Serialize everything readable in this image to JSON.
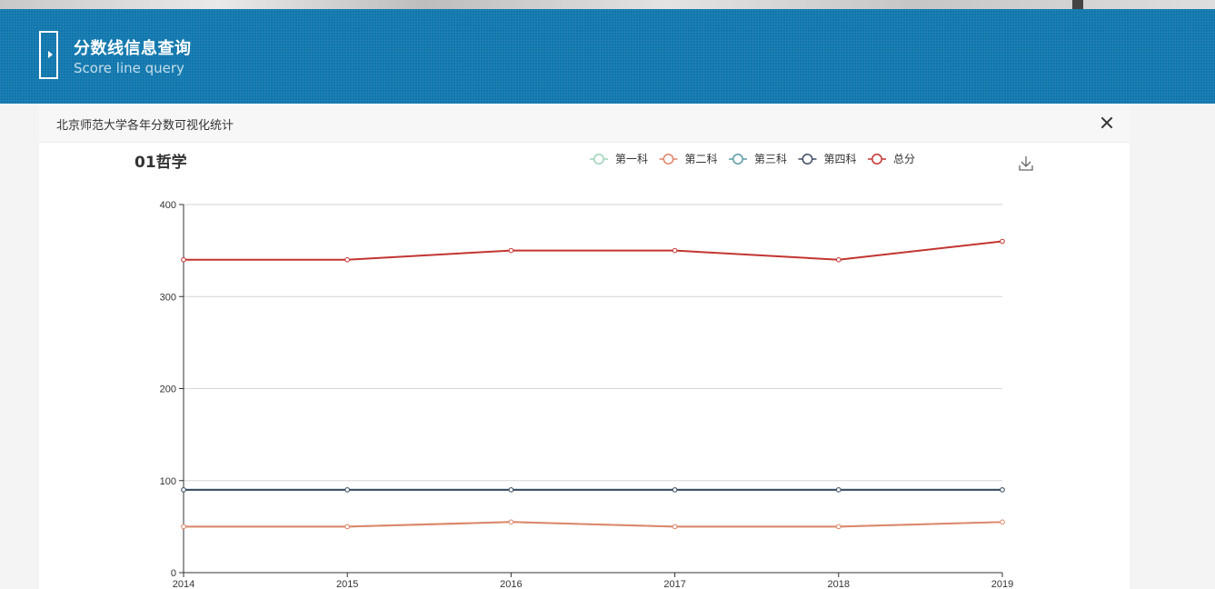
{
  "banner": {
    "title": "分数线信息查询",
    "subtitle": "Score line query",
    "color": "#0f76ad",
    "icon": "play-icon"
  },
  "panel": {
    "title": "北京师范大学各年分数可视化统计",
    "close_icon": "close-icon"
  },
  "toolbar": {
    "download_icon": "download-icon"
  },
  "chart_data": {
    "type": "line",
    "title": "01哲学",
    "xlabel": "",
    "ylabel": "",
    "x": [
      "2014",
      "2015",
      "2016",
      "2017",
      "2018",
      "2019"
    ],
    "ylim": [
      0,
      400
    ],
    "yticks": [
      "0",
      "100",
      "200",
      "300",
      "400"
    ],
    "grid": true,
    "legend_position": "top",
    "series": [
      {
        "name": "第一科",
        "color": "#9fd3b9",
        "values": [
          50,
          50,
          55,
          50,
          50,
          55
        ]
      },
      {
        "name": "第二科",
        "color": "#e0866a",
        "values": [
          50,
          50,
          55,
          50,
          50,
          55
        ]
      },
      {
        "name": "第三科",
        "color": "#5b9aa6",
        "values": [
          90,
          90,
          90,
          90,
          90,
          90
        ]
      },
      {
        "name": "第四科",
        "color": "#3e4e63",
        "values": [
          90,
          90,
          90,
          90,
          90,
          90
        ]
      },
      {
        "name": "总分",
        "color": "#c23531",
        "values": [
          340,
          340,
          350,
          350,
          340,
          360
        ]
      }
    ]
  }
}
